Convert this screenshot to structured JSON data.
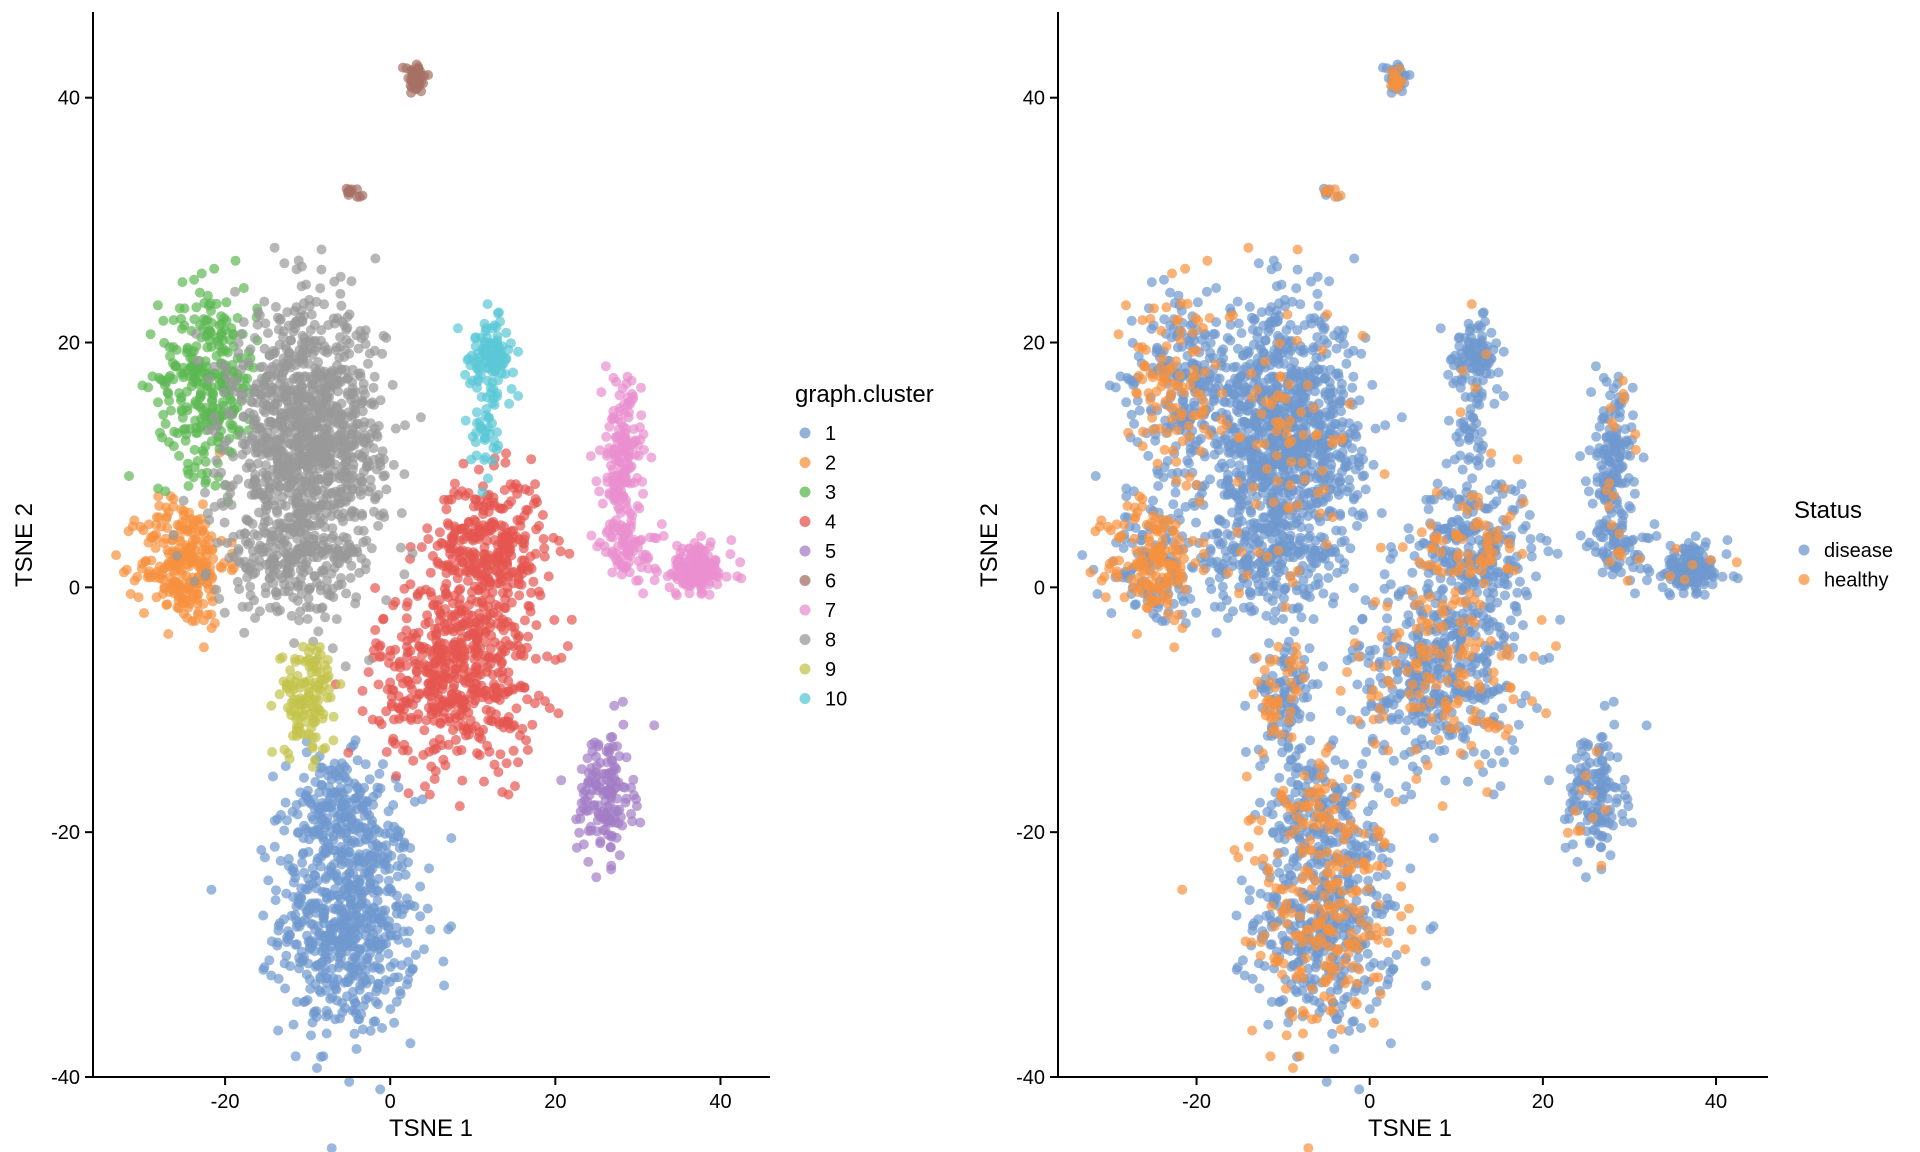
{
  "chart_data": [
    {
      "type": "scatter",
      "xlabel": "TSNE 1",
      "ylabel": "TSNE 2",
      "xlim": [
        -36,
        46
      ],
      "ylim": [
        -40,
        47
      ],
      "x_ticks": [
        -20,
        0,
        20,
        40
      ],
      "y_ticks": [
        -40,
        -20,
        0,
        20,
        40
      ],
      "x_tick_labels": [
        "-20",
        "0",
        "20",
        "40"
      ],
      "y_tick_labels": [
        "-40",
        "-20",
        "0",
        "20",
        "40"
      ],
      "grid": false,
      "legend": {
        "title": "graph.cluster",
        "placement": "right",
        "entries": [
          {
            "label": "1",
            "color": "#6f98cf"
          },
          {
            "label": "2",
            "color": "#f7923f"
          },
          {
            "label": "3",
            "color": "#5db853"
          },
          {
            "label": "4",
            "color": "#e65550"
          },
          {
            "label": "5",
            "color": "#a37ec6"
          },
          {
            "label": "6",
            "color": "#a77065"
          },
          {
            "label": "7",
            "color": "#ea8fcf"
          },
          {
            "label": "8",
            "color": "#999999"
          },
          {
            "label": "9",
            "color": "#c3c34c"
          },
          {
            "label": "10",
            "color": "#5ac8d6"
          }
        ]
      },
      "series": [
        {
          "name": "1",
          "color": "#6f98cf",
          "clusters": [
            {
              "cx": -5,
              "cy": -27,
              "sx": 5.5,
              "sy": 6.5,
              "n": 650
            },
            {
              "cx": -7,
              "cy": -18,
              "sx": 4,
              "sy": 3,
              "n": 150
            }
          ]
        },
        {
          "name": "2",
          "color": "#f7923f",
          "clusters": [
            {
              "cx": -25,
              "cy": 2,
              "sx": 3.5,
              "sy": 3.5,
              "n": 260
            }
          ]
        },
        {
          "name": "3",
          "color": "#5db853",
          "clusters": [
            {
              "cx": -22,
              "cy": 17,
              "sx": 4,
              "sy": 5,
              "n": 300
            }
          ]
        },
        {
          "name": "4",
          "color": "#e65550",
          "clusters": [
            {
              "cx": 12,
              "cy": 3,
              "sx": 4.5,
              "sy": 4,
              "n": 330
            },
            {
              "cx": 8,
              "cy": -7,
              "sx": 6.5,
              "sy": 5,
              "n": 520
            }
          ]
        },
        {
          "name": "5",
          "color": "#a37ec6",
          "clusters": [
            {
              "cx": 26,
              "cy": -17,
              "sx": 2.2,
              "sy": 3.5,
              "n": 150
            }
          ]
        },
        {
          "name": "6",
          "color": "#a77065",
          "clusters": [
            {
              "cx": 3,
              "cy": 41.5,
              "sx": 0.9,
              "sy": 0.8,
              "n": 60
            },
            {
              "cx": -4.5,
              "cy": 32.3,
              "sx": 0.6,
              "sy": 0.3,
              "n": 12
            }
          ]
        },
        {
          "name": "7",
          "color": "#ea8fcf",
          "clusters": [
            {
              "cx": 28,
              "cy": 10,
              "sx": 1.6,
              "sy": 4.5,
              "n": 170
            },
            {
              "cx": 37,
              "cy": 1.5,
              "sx": 3,
              "sy": 1.4,
              "n": 140
            },
            {
              "cx": 29,
              "cy": 3,
              "sx": 2.5,
              "sy": 1.5,
              "n": 60
            }
          ]
        },
        {
          "name": "8",
          "color": "#999999",
          "clusters": [
            {
              "cx": -10,
              "cy": 12,
              "sx": 6,
              "sy": 7,
              "n": 1100
            },
            {
              "cx": -12,
              "cy": 2,
              "sx": 6,
              "sy": 3,
              "n": 200
            }
          ]
        },
        {
          "name": "9",
          "color": "#c3c34c",
          "clusters": [
            {
              "cx": -10,
              "cy": -9,
              "sx": 2.2,
              "sy": 3,
              "n": 130
            }
          ]
        },
        {
          "name": "10",
          "color": "#5ac8d6",
          "clusters": [
            {
              "cx": 12,
              "cy": 19,
              "sx": 2,
              "sy": 1.8,
              "n": 100
            },
            {
              "cx": 12,
              "cy": 13,
              "sx": 1.3,
              "sy": 2.5,
              "n": 40
            }
          ]
        }
      ]
    },
    {
      "type": "scatter",
      "xlabel": "TSNE 1",
      "ylabel": "TSNE 2",
      "xlim": [
        -36,
        46
      ],
      "ylim": [
        -40,
        47
      ],
      "x_ticks": [
        -20,
        0,
        20,
        40
      ],
      "y_ticks": [
        -40,
        -20,
        0,
        20,
        40
      ],
      "x_tick_labels": [
        "-20",
        "0",
        "20",
        "40"
      ],
      "y_tick_labels": [
        "-40",
        "-20",
        "0",
        "20",
        "40"
      ],
      "grid": false,
      "legend": {
        "title": "Status",
        "placement": "right",
        "entries": [
          {
            "label": "disease",
            "color": "#6f98cf"
          },
          {
            "label": "healthy",
            "color": "#f7923f"
          }
        ]
      },
      "healthy_fraction_by_cluster": {
        "1": 0.3,
        "2": 0.55,
        "3": 0.35,
        "4": 0.25,
        "5": 0.12,
        "6": 0.3,
        "7": 0.08,
        "8": 0.05,
        "9": 0.3,
        "10": 0.05
      },
      "series": [
        {
          "name": "disease",
          "color": "#6f98cf"
        },
        {
          "name": "healthy",
          "color": "#f7923f"
        }
      ]
    }
  ]
}
